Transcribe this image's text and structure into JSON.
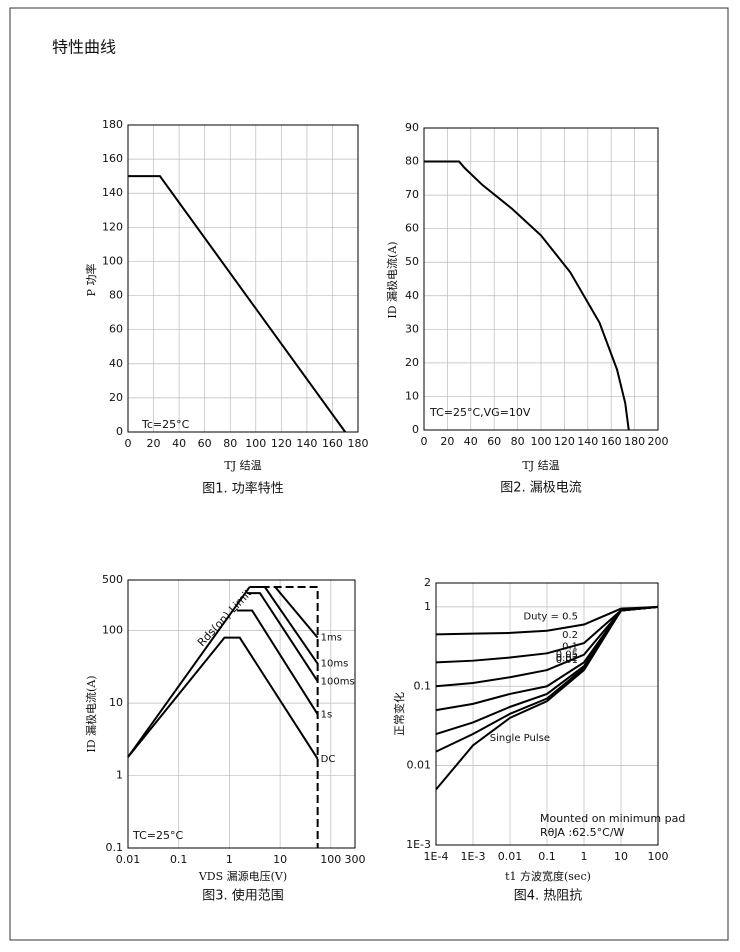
{
  "heading": "特性曲线",
  "chart_data": [
    {
      "type": "line",
      "title": "图1. 功率特性",
      "x_label": "TJ 结温",
      "y_label": "P 功率",
      "annotations": [
        "Tc=25°C"
      ],
      "xlim": [
        0,
        180
      ],
      "xticks": [
        0,
        20,
        40,
        60,
        80,
        100,
        120,
        140,
        160,
        180
      ],
      "ylim": [
        0,
        180
      ],
      "yticks": [
        0,
        20,
        40,
        60,
        80,
        100,
        120,
        140,
        160,
        180
      ],
      "grid": true,
      "series": [
        {
          "color": "#000000",
          "x": [
            0,
            25,
            170
          ],
          "values": [
            150,
            150,
            0
          ]
        }
      ]
    },
    {
      "type": "line",
      "title": "图2. 漏极电流",
      "x_label": "TJ 结温",
      "y_label": "ID 漏极电流(A)",
      "annotations": [
        "TC=25°C,VG=10V"
      ],
      "xlim": [
        0,
        200
      ],
      "xticks": [
        0,
        20,
        40,
        60,
        80,
        100,
        120,
        140,
        160,
        180,
        200
      ],
      "ylim": [
        0,
        90
      ],
      "yticks": [
        0,
        10,
        20,
        30,
        40,
        50,
        60,
        70,
        80,
        90
      ],
      "grid": true,
      "series": [
        {
          "color": "#000000",
          "x": [
            0,
            30,
            35,
            50,
            75,
            100,
            125,
            150,
            165,
            172,
            175
          ],
          "values": [
            80,
            80,
            78,
            73,
            66,
            58,
            47,
            32,
            18,
            8,
            0
          ]
        }
      ]
    },
    {
      "type": "line",
      "title": "图3. 使用范围",
      "x_label": "VDS 漏源电压(V)",
      "y_label": "ID 漏极电流(A)",
      "annotations": [
        "TC=25°C",
        "Rds(on) Limit"
      ],
      "log_x": true,
      "log_y": true,
      "xlim": [
        0.01,
        300
      ],
      "xticks": [
        0.01,
        0.1,
        1,
        10,
        100,
        300
      ],
      "ylim": [
        0.1,
        500
      ],
      "yticks": [
        0.1,
        1,
        10,
        100,
        500
      ],
      "grid": true,
      "series": [
        {
          "color": "#000000",
          "x": [
            0.01,
            2.5
          ],
          "values": [
            1.8,
            400
          ]
        },
        {
          "name": "DC",
          "color": "#000000",
          "x": [
            0.01,
            0.8,
            1.6,
            55
          ],
          "values": [
            1.8,
            80,
            80,
            1.7
          ]
        },
        {
          "name": "1s",
          "color": "#000000",
          "x": [
            1.4,
            2.8,
            55
          ],
          "values": [
            190,
            190,
            7
          ]
        },
        {
          "name": "100ms",
          "color": "#000000",
          "x": [
            2.2,
            4,
            55
          ],
          "values": [
            330,
            330,
            20
          ]
        },
        {
          "name": "10ms",
          "color": "#000000",
          "x": [
            2.5,
            5,
            55
          ],
          "values": [
            400,
            400,
            35
          ]
        },
        {
          "name": "1ms",
          "color": "#000000",
          "x": [
            8,
            55
          ],
          "values": [
            400,
            80
          ]
        },
        {
          "color": "#000000",
          "dashed": true,
          "x": [
            2.5,
            55,
            55
          ],
          "values": [
            400,
            400,
            0.1
          ]
        }
      ]
    },
    {
      "type": "line",
      "title": "图4. 热阻抗",
      "x_label": "t1 方波宽度(sec)",
      "y_label": "正常变化",
      "annotations": [
        "Mounted on minimum pad",
        "RθJA :62.5°C/W"
      ],
      "log_x": true,
      "log_y": true,
      "xlim": [
        0.0001,
        100
      ],
      "xticks": [
        {
          "value": 0.0001,
          "label": "1E-4"
        },
        {
          "value": 0.001,
          "label": "1E-3"
        },
        0.01,
        0.1,
        1,
        10,
        100
      ],
      "ylim": [
        0.001,
        2
      ],
      "yticks": [
        {
          "value": 0.001,
          "label": "1E-3"
        },
        0.01,
        0.1,
        1,
        2
      ],
      "grid": true,
      "x": [
        0.0001,
        0.001,
        0.01,
        0.1,
        1,
        10,
        100
      ],
      "series": [
        {
          "name": "Duty =  0.5",
          "color": "#000000",
          "values": [
            0.45,
            0.46,
            0.47,
            0.5,
            0.6,
            0.95,
            1.0
          ]
        },
        {
          "name": "0.2",
          "color": "#000000",
          "values": [
            0.2,
            0.21,
            0.23,
            0.26,
            0.35,
            0.9,
            1.0
          ]
        },
        {
          "name": "0.1",
          "color": "#000000",
          "values": [
            0.1,
            0.11,
            0.13,
            0.16,
            0.25,
            0.9,
            1.0
          ]
        },
        {
          "name": "0.05",
          "color": "#000000",
          "values": [
            0.05,
            0.06,
            0.08,
            0.1,
            0.2,
            0.9,
            1.0
          ]
        },
        {
          "name": "0.02",
          "color": "#000000",
          "values": [
            0.025,
            0.035,
            0.055,
            0.08,
            0.18,
            0.9,
            1.0
          ]
        },
        {
          "name": "0.01",
          "color": "#000000",
          "values": [
            0.015,
            0.025,
            0.045,
            0.07,
            0.17,
            0.9,
            1.0
          ]
        },
        {
          "name": "Single Pulse",
          "color": "#000000",
          "values": [
            0.005,
            0.018,
            0.04,
            0.065,
            0.16,
            0.9,
            1.0
          ]
        }
      ]
    }
  ]
}
